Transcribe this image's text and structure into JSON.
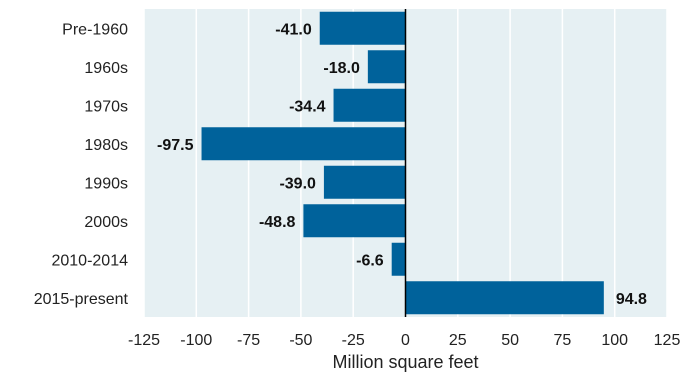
{
  "chart_data": {
    "type": "bar",
    "orientation": "horizontal",
    "categories": [
      "Pre-1960",
      "1960s",
      "1970s",
      "1980s",
      "1990s",
      "2000s",
      "2010-2014",
      "2015-present"
    ],
    "values": [
      -41.0,
      -18.0,
      -34.4,
      -97.5,
      -39.0,
      -48.8,
      -6.6,
      94.8
    ],
    "data_labels": [
      "-41.0",
      "-18.0",
      "-34.4",
      "-97.5",
      "-39.0",
      "-48.8",
      "-6.6",
      "94.8"
    ],
    "xlabel": "Million square feet",
    "ylabel": "",
    "xlim": [
      -125,
      125
    ],
    "x_ticks": [
      -125,
      -100,
      -75,
      -50,
      -25,
      0,
      25,
      50,
      75,
      100,
      125
    ],
    "x_tick_labels": [
      "-125",
      "-100",
      "-75",
      "-50",
      "-25",
      "0",
      "25",
      "50",
      "75",
      "100",
      "125"
    ],
    "grid": true,
    "legend": "none"
  },
  "colors": {
    "bar": "#00629b",
    "plot_background": "#e6f0f3",
    "grid": "#ffffff",
    "zero_line": "#000000"
  }
}
